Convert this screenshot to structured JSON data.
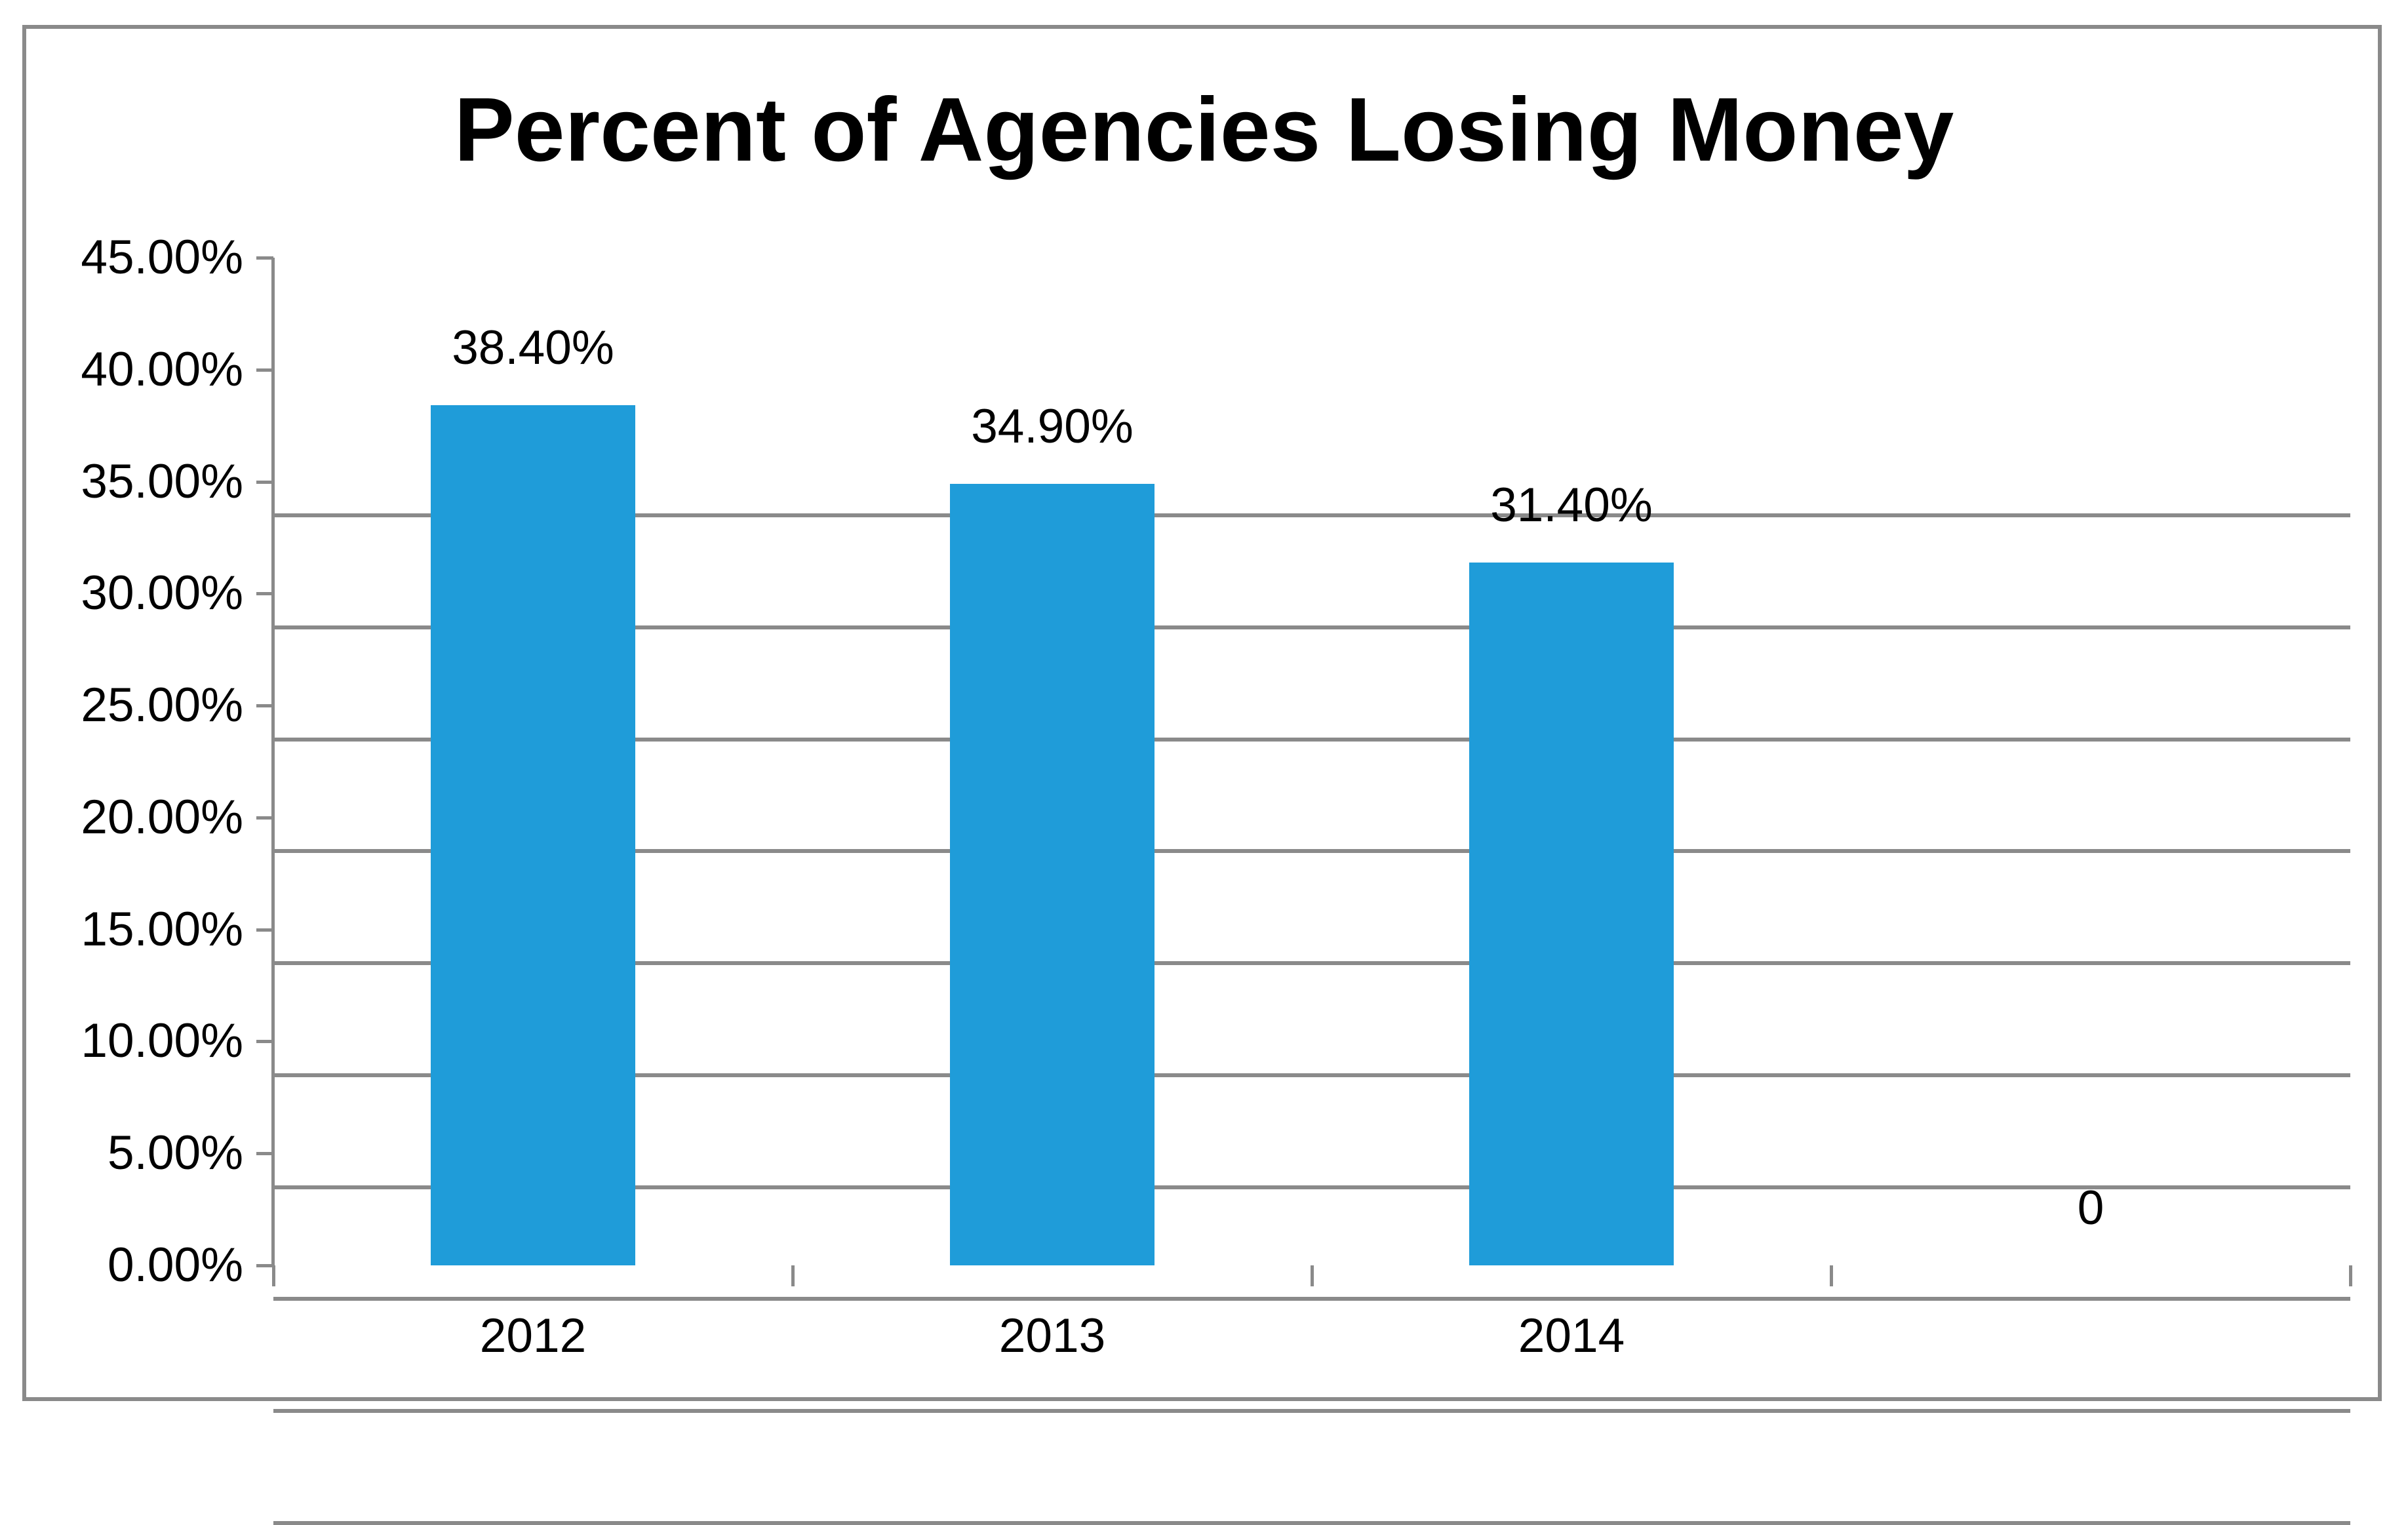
{
  "title": "Percent of Agencies Losing Money",
  "colors": {
    "bar": "#1F9CD9",
    "grid": "#8A8A8A",
    "axis": "#8A8A8A",
    "border": "#8A8A8A",
    "text": "#000000",
    "background": "#FFFFFF"
  },
  "chart_data": {
    "type": "bar",
    "title": "Percent of Agencies Losing Money",
    "categories": [
      "2012",
      "2013",
      "2014",
      ""
    ],
    "values": [
      38.4,
      34.9,
      31.4,
      0
    ],
    "data_labels": [
      "38.40%",
      "34.90%",
      "31.40%",
      "0"
    ],
    "y_tick_labels": [
      "45.00%",
      "40.00%",
      "35.00%",
      "30.00%",
      "25.00%",
      "20.00%",
      "15.00%",
      "10.00%",
      "5.00%",
      "0.00%"
    ],
    "y_tick_values": [
      45,
      40,
      35,
      30,
      25,
      20,
      15,
      10,
      5,
      0
    ],
    "ylim": [
      0,
      45
    ],
    "y_tick_step": 5,
    "xlabel": "",
    "ylabel": "",
    "grid": "horizontal",
    "legend": "none"
  }
}
